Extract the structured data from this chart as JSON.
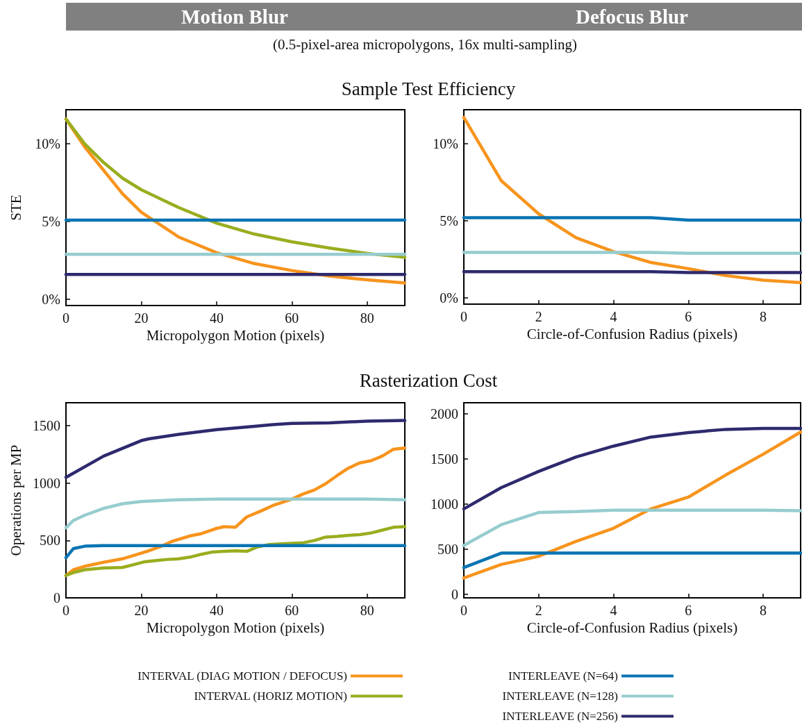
{
  "chart_data": [
    {
      "type": "line",
      "title": "Motion Blur",
      "subtitle": "(0.5-pixel-area micropolygons, 16x multi-sampling)",
      "annotations": [
        "Sample Test Efficiency"
      ],
      "xlabel": "Micropolygon Motion (pixels)",
      "ylabel": "STE",
      "x": [
        0,
        5,
        10,
        15,
        20,
        30,
        40,
        50,
        60,
        70,
        80,
        90
      ],
      "xlim": [
        0,
        90
      ],
      "xticks": [
        0,
        20,
        40,
        60,
        80
      ],
      "ylim": [
        -0.4,
        12.2
      ],
      "yticks": [
        {
          "value": 0,
          "label": "0%"
        },
        {
          "value": 5,
          "label": "5%"
        },
        {
          "value": 10,
          "label": "10%"
        }
      ],
      "grid": false,
      "marker": "none",
      "line_style": "solid",
      "series": [
        {
          "color": "#f7941d",
          "values": [
            11.6,
            9.8,
            8.3,
            6.8,
            5.6,
            4.0,
            3.0,
            2.3,
            1.85,
            1.5,
            1.25,
            1.05
          ]
        },
        {
          "color": "#9aad1f",
          "values": [
            11.6,
            10.0,
            8.8,
            7.8,
            7.05,
            5.9,
            4.9,
            4.2,
            3.7,
            3.3,
            2.95,
            2.7
          ]
        },
        {
          "color": "#0a74b3",
          "values": [
            5.1,
            5.1,
            5.1,
            5.1,
            5.1,
            5.1,
            5.1,
            5.1,
            5.1,
            5.1,
            5.1,
            5.1
          ]
        },
        {
          "color": "#96cccf",
          "values": [
            2.9,
            2.9,
            2.9,
            2.9,
            2.9,
            2.9,
            2.9,
            2.9,
            2.9,
            2.9,
            2.9,
            2.9
          ]
        },
        {
          "color": "#2e2a6e",
          "values": [
            1.6,
            1.6,
            1.6,
            1.6,
            1.6,
            1.6,
            1.6,
            1.6,
            1.6,
            1.6,
            1.6,
            1.6
          ]
        }
      ]
    },
    {
      "type": "line",
      "title": "Defocus Blur",
      "xlabel": "Circle-of-Confusion Radius (pixels)",
      "x": [
        0,
        1,
        2,
        3,
        4,
        5,
        6,
        7,
        8,
        9
      ],
      "xlim": [
        0,
        9
      ],
      "xticks": [
        0,
        2,
        4,
        6,
        8
      ],
      "ylim": [
        -0.4,
        12.2
      ],
      "yticks": [
        {
          "value": 0,
          "label": "0%"
        },
        {
          "value": 5,
          "label": "5%"
        },
        {
          "value": 10,
          "label": "10%"
        }
      ],
      "grid": false,
      "marker": "none",
      "line_style": "solid",
      "series": [
        {
          "color": "#f7941d",
          "values": [
            11.7,
            7.6,
            5.45,
            3.9,
            3.0,
            2.3,
            1.9,
            1.45,
            1.15,
            1.0
          ]
        },
        {
          "color": "#0a74b3",
          "values": [
            5.2,
            5.2,
            5.2,
            5.2,
            5.2,
            5.2,
            5.05,
            5.05,
            5.05,
            5.05
          ]
        },
        {
          "color": "#96cccf",
          "values": [
            2.95,
            2.95,
            2.95,
            2.95,
            2.95,
            2.95,
            2.9,
            2.9,
            2.9,
            2.9
          ]
        },
        {
          "color": "#2e2a6e",
          "values": [
            1.7,
            1.7,
            1.7,
            1.7,
            1.7,
            1.7,
            1.65,
            1.65,
            1.65,
            1.65
          ]
        }
      ]
    },
    {
      "type": "line",
      "annotations": [
        "Rasterization Cost"
      ],
      "xlabel": "Micropolygon Motion (pixels)",
      "ylabel": "Operations per MP",
      "xlim": [
        0,
        90
      ],
      "xticks": [
        0,
        20,
        40,
        60,
        80
      ],
      "ylim": [
        0,
        1700
      ],
      "yticks": [
        0,
        500,
        1000,
        1500
      ],
      "grid": false,
      "marker": "none",
      "line_style": "solid",
      "legend": "bottom",
      "series": [
        {
          "name": "INTERVAL (DIAG MOTION / DEFOCUS)",
          "color": "#f7941d",
          "x": [
            0,
            2,
            5,
            10,
            15,
            20,
            22,
            25,
            28,
            30,
            33,
            36,
            40,
            42,
            45,
            48,
            52,
            55,
            60,
            63,
            66,
            69,
            72,
            75,
            78,
            81,
            84,
            87,
            90
          ],
          "values": [
            195,
            245,
            275,
            310,
            340,
            390,
            410,
            445,
            490,
            510,
            540,
            560,
            605,
            620,
            615,
            705,
            760,
            805,
            860,
            905,
            940,
            995,
            1065,
            1130,
            1175,
            1195,
            1235,
            1295,
            1305
          ]
        },
        {
          "name": "INTERVAL (HORIZ MOTION)",
          "color": "#9aad1f",
          "x": [
            0,
            2,
            5,
            10,
            15,
            18,
            21,
            24,
            27,
            30,
            33,
            36,
            39,
            42,
            45,
            48,
            51,
            54,
            57,
            60,
            63,
            66,
            69,
            72,
            75,
            78,
            81,
            84,
            87,
            90
          ],
          "values": [
            195,
            220,
            245,
            260,
            265,
            290,
            315,
            325,
            335,
            340,
            355,
            380,
            400,
            405,
            410,
            405,
            445,
            465,
            470,
            475,
            480,
            500,
            530,
            535,
            545,
            550,
            565,
            590,
            615,
            620
          ]
        },
        {
          "name": "INTERLEAVE (N=64)",
          "color": "#0a74b3",
          "x": [
            0,
            2,
            5,
            10,
            20,
            40,
            60,
            80,
            90
          ],
          "values": [
            350,
            430,
            450,
            455,
            455,
            455,
            455,
            455,
            455
          ]
        },
        {
          "name": "INTERLEAVE (N=128)",
          "color": "#96cccf",
          "x": [
            0,
            2,
            5,
            10,
            15,
            20,
            30,
            40,
            50,
            60,
            70,
            80,
            90
          ],
          "values": [
            610,
            675,
            720,
            780,
            820,
            840,
            855,
            860,
            860,
            860,
            860,
            860,
            855
          ]
        },
        {
          "name": "INTERLEAVE (N=256)",
          "color": "#2e2a6e",
          "x": [
            0,
            10,
            20,
            22,
            30,
            40,
            50,
            55,
            60,
            70,
            80,
            90
          ],
          "values": [
            1050,
            1235,
            1370,
            1385,
            1425,
            1465,
            1495,
            1510,
            1520,
            1525,
            1540,
            1545
          ]
        }
      ]
    },
    {
      "type": "line",
      "xlabel": "Circle-of-Confusion Radius (pixels)",
      "x": [
        0,
        1,
        2,
        3,
        4,
        5,
        6,
        7,
        8,
        9
      ],
      "xlim": [
        0,
        9
      ],
      "xticks": [
        0,
        2,
        4,
        6,
        8
      ],
      "ylim": [
        -40,
        2120
      ],
      "yticks": [
        0,
        500,
        1000,
        1500,
        2000
      ],
      "grid": false,
      "marker": "none",
      "line_style": "solid",
      "series": [
        {
          "color": "#f7941d",
          "values": [
            180,
            330,
            420,
            585,
            730,
            945,
            1075,
            1320,
            1550,
            1795
          ]
        },
        {
          "color": "#0a74b3",
          "values": [
            295,
            455,
            455,
            455,
            455,
            455,
            455,
            455,
            455,
            455
          ]
        },
        {
          "color": "#96cccf",
          "values": [
            540,
            770,
            905,
            915,
            930,
            930,
            930,
            930,
            930,
            925
          ]
        },
        {
          "color": "#2e2a6e",
          "values": [
            945,
            1180,
            1360,
            1520,
            1640,
            1740,
            1790,
            1825,
            1835,
            1835
          ]
        }
      ]
    }
  ]
}
